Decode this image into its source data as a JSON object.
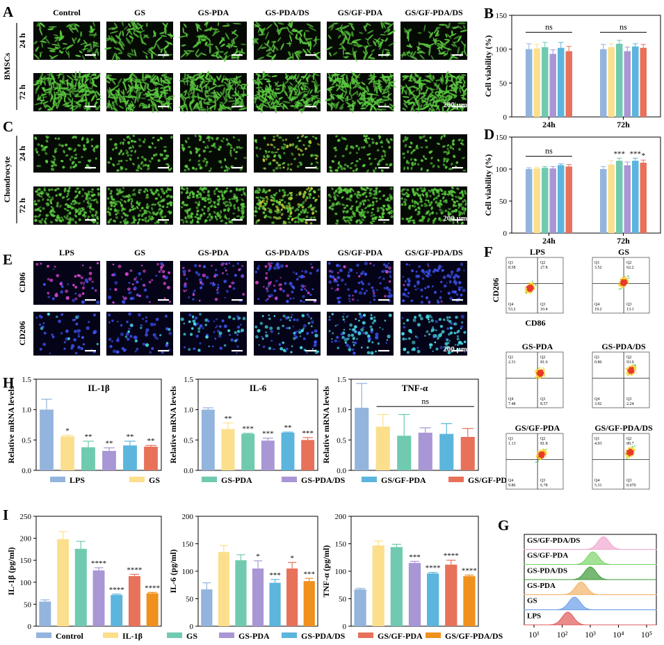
{
  "colors": {
    "blue": "#93b4dc",
    "yellow": "#fcdf8c",
    "teal": "#6fcab0",
    "purple": "#a996d4",
    "skyblue": "#5cb5dd",
    "salmon": "#e8715a",
    "orange": "#f0901d",
    "microBg": "#060a04",
    "cellGreen": "#58c63e",
    "fluorBg": "#050318",
    "fluorMagenta": "#cc44c6",
    "fluorBlue": "#3a50e8",
    "fluorCyan": "#45d6e0"
  },
  "panelA": {
    "letter": "A",
    "columns": [
      "Control",
      "GS",
      "GS-PDA",
      "GS-PDA/DS",
      "GS/GF-PDA",
      "GS/GF-PDA/DS"
    ],
    "groupLabel": "BMSCs",
    "rowLabels": [
      "24 h",
      "72 h"
    ],
    "scale": "200 μm"
  },
  "panelC": {
    "letter": "C",
    "groupLabel": "Chondrocyte",
    "rowLabels": [
      "24 h",
      "72 h"
    ],
    "scale": "200 μm"
  },
  "panelE": {
    "letter": "E",
    "columns": [
      "LPS",
      "GS",
      "GS-PDA",
      "GS-PDA/DS",
      "GS/GF-PDA",
      "GS/GF-PDA/DS"
    ],
    "rowLabels": [
      "CD86",
      "CD206"
    ],
    "scale": "200 μm"
  },
  "panelF": {
    "letter": "F",
    "ylabel": "CD206",
    "xlabel": "CD86",
    "plots": [
      {
        "title": "LPS",
        "q1": "8.58",
        "q2": "27.8",
        "q3": "10.4",
        "q4": "53.2"
      },
      {
        "title": "GS",
        "q1": "3.52",
        "q2": "62.2",
        "q3": "13.1",
        "q4": "19.2"
      },
      {
        "title": "GS-PDA",
        "q1": "2.31",
        "q2": "81.6",
        "q3": "8.57",
        "q4": "7.48"
      },
      {
        "title": "GS-PDA/DS",
        "q1": "0.86",
        "q2": "93.0",
        "q3": "2.24",
        "q4": "3.92"
      },
      {
        "title": "GS/GF-PDA",
        "q1": "1.13",
        "q2": "81.8",
        "q3": "6.78",
        "q4": "9.86"
      },
      {
        "title": "GS/GF-PDA/DS",
        "q1": "4.93",
        "q2": "89.7",
        "q3": "0.070",
        "q4": "5.31"
      }
    ]
  },
  "panelG": {
    "letter": "G",
    "labels": [
      "GS/GF-PDA/DS",
      "GS/GF-PDA",
      "GS-PDA/DS",
      "GS-PDA",
      "GS",
      "LPS"
    ],
    "xticks": [
      "10¹",
      "10²",
      "10³",
      "10⁴",
      "10⁵"
    ]
  },
  "legendH": [
    "LPS",
    "GS",
    "GS-PDA",
    "GS-PDA/DS",
    "GS/GF-PDA",
    "GS/GF-PDA/DS"
  ],
  "legendI": [
    "Control",
    "IL-1β",
    "GS",
    "GS-PDA",
    "GS-PDA/DS",
    "GS/GF-PDA",
    "GS/GF-PDA/DS"
  ],
  "chart_data": [
    {
      "id": "B",
      "letter": "B",
      "type": "bar",
      "ylabel": "Cell viability (%)",
      "ylim": [
        0,
        150
      ],
      "yticks": [
        "0",
        "50",
        "100",
        "150"
      ],
      "groups": [
        "24h",
        "72h"
      ],
      "series": [
        "Control",
        "GS",
        "GS-PDA",
        "GS-PDA/DS",
        "GS/GF-PDA",
        "GS/GF-PDA/DS"
      ],
      "values": [
        [
          100,
          101,
          103,
          93,
          102,
          97
        ],
        [
          100,
          103,
          108,
          97,
          104,
          102
        ]
      ],
      "errors": [
        [
          8,
          6,
          7,
          6,
          8,
          7
        ],
        [
          7,
          5,
          5,
          6,
          4,
          5
        ]
      ],
      "annotations": [
        {
          "group": 0,
          "text": "ns",
          "y": 125
        },
        {
          "group": 1,
          "text": "ns",
          "y": 125
        }
      ]
    },
    {
      "id": "D",
      "letter": "D",
      "type": "bar",
      "ylabel": "Cell viability (%)",
      "ylim": [
        0,
        150
      ],
      "yticks": [
        "0",
        "50",
        "100",
        "150"
      ],
      "groups": [
        "24h",
        "72h"
      ],
      "series": [
        "Control",
        "GS",
        "GS-PDA",
        "GS-PDA/DS",
        "GS/GF-PDA",
        "GS/GF-PDA/DS"
      ],
      "values": [
        [
          100,
          101,
          102,
          101,
          106,
          104
        ],
        [
          100,
          107,
          113,
          106,
          113,
          110
        ]
      ],
      "errors": [
        [
          2,
          2,
          2,
          3,
          2,
          3
        ],
        [
          4,
          6,
          4,
          5,
          4,
          4
        ]
      ],
      "stars": [
        [
          "",
          "",
          "",
          "",
          "",
          ""
        ],
        [
          "",
          "",
          "***",
          "",
          "***",
          "*"
        ]
      ],
      "annotations": [
        {
          "group": 0,
          "text": "ns",
          "y": 120
        }
      ]
    },
    {
      "id": "H1",
      "type": "bar",
      "title": "IL-1β",
      "letter": "H",
      "ylabel": "Relative mRNA levels",
      "ylim": [
        0,
        1.5
      ],
      "yticks": [
        "0.0",
        "0.5",
        "1.0",
        "1.5"
      ],
      "categories": [
        "LPS",
        "GS",
        "GS-PDA",
        "GS-PDA/DS",
        "GS/GF-PDA",
        "GS/GF-PDA/DS"
      ],
      "values": [
        1.0,
        0.56,
        0.38,
        0.32,
        0.41,
        0.39
      ],
      "errors": [
        0.17,
        0.02,
        0.1,
        0.05,
        0.07,
        0.02
      ],
      "stars": [
        "",
        "*",
        "**",
        "**",
        "**",
        "**"
      ]
    },
    {
      "id": "H2",
      "type": "bar",
      "title": "IL-6",
      "ylabel": "Relative mRNA levels",
      "ylim": [
        0,
        1.5
      ],
      "yticks": [
        "0.0",
        "0.5",
        "1.0",
        "1.5"
      ],
      "categories": [
        "LPS",
        "GS",
        "GS-PDA",
        "GS-PDA/DS",
        "GS/GF-PDA",
        "GS/GF-PDA/DS"
      ],
      "values": [
        1.0,
        0.68,
        0.6,
        0.49,
        0.62,
        0.5
      ],
      "errors": [
        0.03,
        0.1,
        0.01,
        0.04,
        0.01,
        0.04
      ],
      "stars": [
        "",
        "**",
        "***",
        "***",
        "**",
        "***"
      ]
    },
    {
      "id": "H3",
      "type": "bar",
      "title": "TNF-α",
      "ylabel": "Relative mRNA levels",
      "ylim": [
        0,
        1.5
      ],
      "yticks": [
        "0.0",
        "0.5",
        "1.0",
        "1.5"
      ],
      "categories": [
        "LPS",
        "GS",
        "GS-PDA",
        "GS-PDA/DS",
        "GS/GF-PDA",
        "GS/GF-PDA/DS"
      ],
      "values": [
        1.03,
        0.72,
        0.57,
        0.62,
        0.6,
        0.55
      ],
      "errors": [
        0.4,
        0.2,
        0.35,
        0.08,
        0.17,
        0.14
      ],
      "stars": [
        "",
        "",
        "",
        "",
        "",
        ""
      ],
      "bracket": {
        "from": 1,
        "to": 5,
        "text": "ns",
        "y": 1.05
      }
    },
    {
      "id": "I1",
      "type": "bar",
      "letter": "I",
      "ylabel": "IL-1β (pg/ml)",
      "ylim": [
        0,
        250
      ],
      "yticks": [
        "0",
        "50",
        "100",
        "150",
        "200",
        "250"
      ],
      "categories": [
        "Control",
        "IL-1β",
        "GS",
        "GS-PDA",
        "GS-PDA/DS",
        "GS/GF-PDA",
        "GS/GF-PDA/DS"
      ],
      "values": [
        56,
        198,
        176,
        127,
        71,
        114,
        75
      ],
      "errors": [
        4,
        17,
        17,
        6,
        2,
        4,
        2
      ],
      "stars": [
        "",
        "",
        "",
        "****",
        "****",
        "****",
        "****"
      ]
    },
    {
      "id": "I2",
      "type": "bar",
      "ylabel": "IL-6 (pg/ml)",
      "ylim": [
        0,
        200
      ],
      "yticks": [
        "0",
        "50",
        "100",
        "150",
        "200"
      ],
      "categories": [
        "Control",
        "IL-1β",
        "GS",
        "GS-PDA",
        "GS-PDA/DS",
        "GS/GF-PDA",
        "GS/GF-PDA/DS"
      ],
      "values": [
        67,
        135,
        120,
        105,
        79,
        105,
        82
      ],
      "errors": [
        12,
        12,
        10,
        14,
        6,
        11,
        5
      ],
      "stars": [
        "",
        "",
        "",
        "*",
        "***",
        "*",
        "***"
      ]
    },
    {
      "id": "I3",
      "type": "bar",
      "ylabel": "TNF-α (pg/ml)",
      "ylim": [
        0,
        200
      ],
      "yticks": [
        "0",
        "50",
        "100",
        "150",
        "200"
      ],
      "categories": [
        "Control",
        "IL-1β",
        "GS",
        "GS-PDA",
        "GS-PDA/DS",
        "GS/GF-PDA",
        "GS/GF-PDA/DS"
      ],
      "values": [
        67,
        147,
        144,
        115,
        96,
        112,
        91
      ],
      "errors": [
        2,
        8,
        5,
        3,
        2,
        8,
        2
      ],
      "stars": [
        "",
        "",
        "",
        "***",
        "****",
        "****",
        "****"
      ]
    }
  ]
}
